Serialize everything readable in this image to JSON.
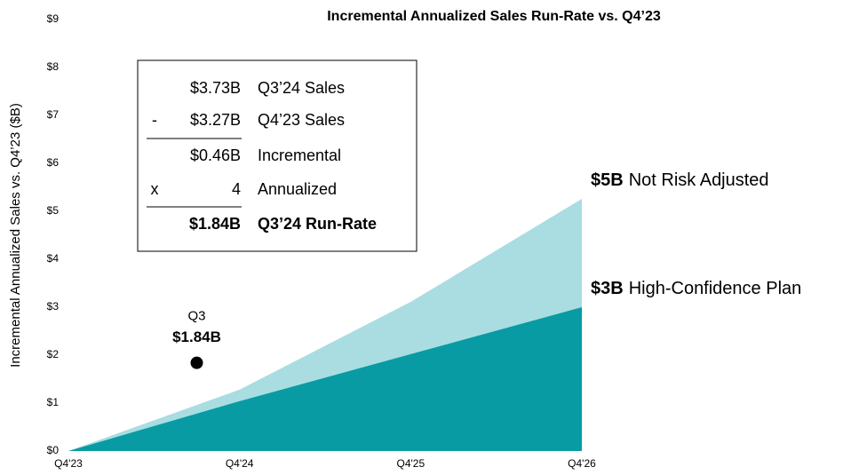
{
  "chart_data": {
    "type": "area",
    "title": "Incremental Annualized Sales Run-Rate vs. Q4’23",
    "y_label": "Incremental Annualized Sales vs. Q4’23 ($B)",
    "x": [
      0,
      4,
      8,
      12
    ],
    "xlim": [
      0,
      12
    ],
    "xticks": [
      {
        "value": 0,
        "label": "Q4'23"
      },
      {
        "value": 4,
        "label": "Q4'24"
      },
      {
        "value": 8,
        "label": "Q4'25"
      },
      {
        "value": 12,
        "label": "Q4'26"
      }
    ],
    "ylim": [
      0,
      9
    ],
    "yticks": [
      {
        "value": 0,
        "label": "$0"
      },
      {
        "value": 1,
        "label": "$1"
      },
      {
        "value": 2,
        "label": "$2"
      },
      {
        "value": 3,
        "label": "$3"
      },
      {
        "value": 4,
        "label": "$4"
      },
      {
        "value": 5,
        "label": "$5"
      },
      {
        "value": 6,
        "label": "$6"
      },
      {
        "value": 7,
        "label": "$7"
      },
      {
        "value": 8,
        "label": "$8"
      },
      {
        "value": 9,
        "label": "$9"
      }
    ],
    "series": [
      {
        "name": "Not Risk Adjusted",
        "end_label": "$5B",
        "color": "#a9dde1",
        "values": [
          0,
          1.28,
          3.11,
          5.26
        ]
      },
      {
        "name": "High-Confidence Plan",
        "end_label": "$3B",
        "color": "#089ba3",
        "values": [
          0,
          1.04,
          2.02,
          3.0
        ]
      }
    ],
    "point": {
      "x": 3,
      "y": 1.84,
      "label": "Q3",
      "value_label": "$1.84B",
      "color": "#000000"
    },
    "calc_box": {
      "rows": [
        {
          "amount": "$3.73B",
          "label": "Q3’24 Sales"
        },
        {
          "op": "-",
          "amount": "$3.27B",
          "label": "Q4’23 Sales"
        },
        {
          "amount": "$0.46B",
          "label": "Incremental"
        },
        {
          "op": "x",
          "amount": "4",
          "label": "Annualized"
        },
        {
          "amount": "$1.84B",
          "label": "Q3’24 Run-Rate",
          "bold": true
        }
      ]
    }
  }
}
